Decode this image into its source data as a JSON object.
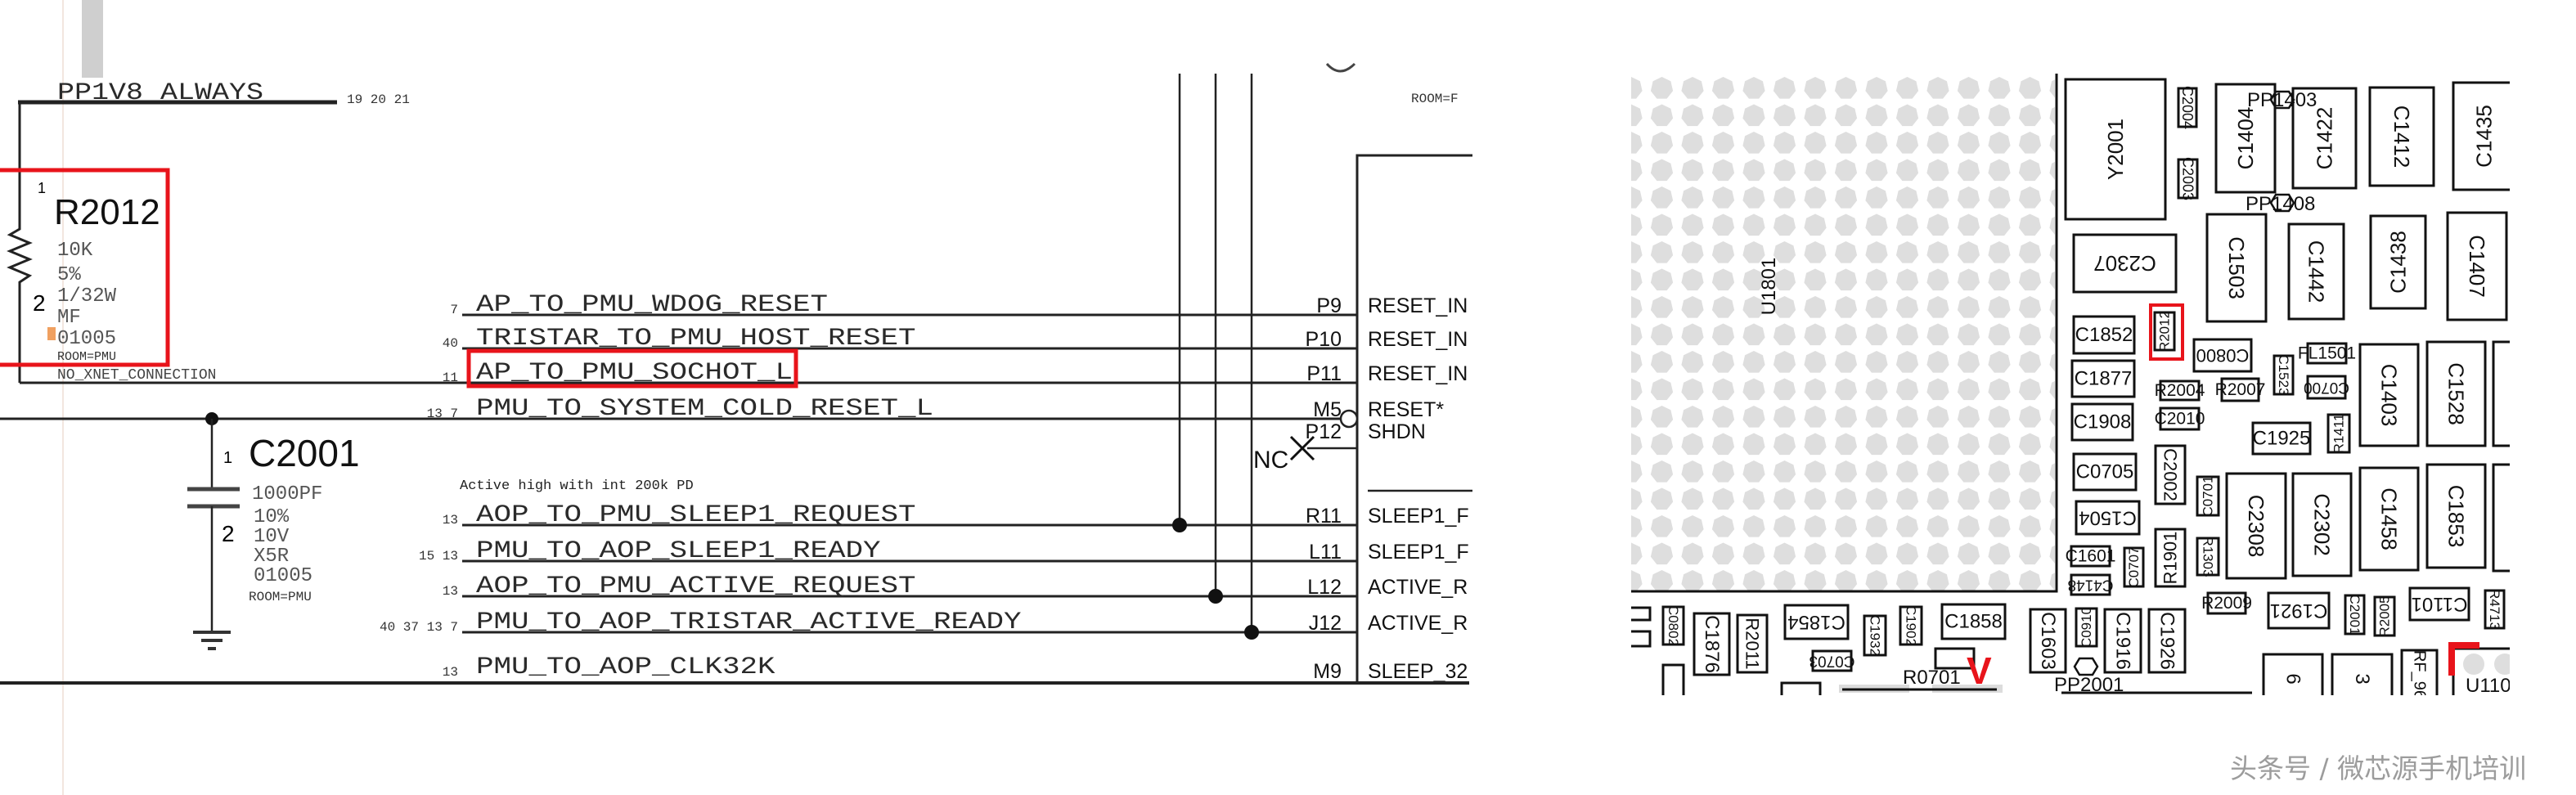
{
  "schematic": {
    "power_net": "PP1V8_ALWAYS",
    "power_refs": "19  20  21",
    "resistor": {
      "ref": "R2012",
      "pin1": "1",
      "pin2": "2",
      "value": "10K",
      "tolerance": "5%",
      "power": "1/32W",
      "type": "MF",
      "package": "01005",
      "room": "ROOM=PMU",
      "note": "NO_XNET_CONNECTION"
    },
    "capacitor": {
      "ref": "C2001",
      "pin1": "1",
      "pin2": "2",
      "value": "1000PF",
      "tolerance": "10%",
      "voltage": "10V",
      "dielectric": "X5R",
      "package": "01005",
      "room": "ROOM=PMU"
    },
    "annotation": "Active high with int 200k PD",
    "nets": [
      {
        "name": "AP_TO_PMU_WDOG_RESET",
        "refs": "7",
        "pin": "P9",
        "pin_name": "RESET_IN"
      },
      {
        "name": "TRISTAR_TO_PMU_HOST_RESET",
        "refs": "40",
        "pin": "P10",
        "pin_name": "RESET_IN"
      },
      {
        "name": "AP_TO_PMU_SOCHOT_L",
        "refs": "11",
        "pin": "P11",
        "pin_name": "RESET_IN"
      },
      {
        "name": "PMU_TO_SYSTEM_COLD_RESET_L",
        "refs": "13  7",
        "pin": "M5",
        "pin_name": "RESET*"
      },
      {
        "name": "",
        "refs": "",
        "pin": "P12",
        "pin_name": "SHDN"
      },
      {
        "name": "AOP_TO_PMU_SLEEP1_REQUEST",
        "refs": "13",
        "pin": "R11",
        "pin_name": "SLEEP1_F"
      },
      {
        "name": "PMU_TO_AOP_SLEEP1_READY",
        "refs": "15  13",
        "pin": "L11",
        "pin_name": "SLEEP1_F"
      },
      {
        "name": "AOP_TO_PMU_ACTIVE_REQUEST",
        "refs": "13",
        "pin": "L12",
        "pin_name": "ACTIVE_R"
      },
      {
        "name": "PMU_TO_AOP_TRISTAR_ACTIVE_READY",
        "refs": "40  37  13  7",
        "pin": "J12",
        "pin_name": "ACTIVE_R"
      },
      {
        "name": "PMU_TO_AOP_CLK32K",
        "refs": "13",
        "pin": "M9",
        "pin_name": "SLEEP_32"
      }
    ],
    "nc_label": "NC",
    "top_room": "ROOM=F",
    "highlight_color": "#e8141b"
  },
  "pcb": {
    "bga_label": "U1801",
    "components": [
      "Y2001",
      "C2004",
      "C2003",
      "C1404",
      "C1422",
      "C1412",
      "C1435",
      "C2307",
      "C1503",
      "C1442",
      "C1438",
      "C1407",
      "C1852",
      "R2012",
      "C0800",
      "FL1501",
      "C1523",
      "C0700",
      "C1403",
      "C1528",
      "C1877",
      "R2004",
      "R2007",
      "C1908",
      "C2010",
      "C1925",
      "R1411",
      "C0705",
      "C2002",
      "C1504",
      "C0701",
      "R1303",
      "R1901",
      "C2308",
      "C2302",
      "C1458",
      "C1853",
      "C1601",
      "C0707",
      "C4148",
      "C1603",
      "C0910",
      "C1916",
      "C1926",
      "R2009",
      "C1921",
      "C2001",
      "R2005",
      "C1101",
      "R4713",
      "C0802",
      "C1876",
      "R2011",
      "C1854",
      "C0703",
      "C1932",
      "C1902",
      "C1858",
      "6",
      "3",
      "RF_96"
    ],
    "test_points": [
      "PP1403",
      "PP1408",
      "PP2001"
    ],
    "r0701_label": "R0701",
    "u110_label": "U110",
    "marker": "V",
    "pad_color": "#dedede",
    "highlight_color": "#e8141b"
  },
  "watermark": "头条号 / 微芯源手机培训"
}
